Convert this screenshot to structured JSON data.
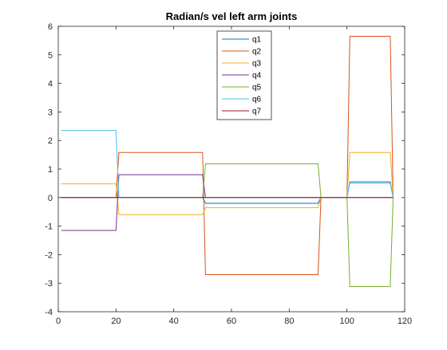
{
  "chart_data": {
    "type": "line",
    "title": "Radian/s vel left arm joints",
    "xlabel": "",
    "ylabel": "",
    "xlim": [
      0,
      120
    ],
    "ylim": [
      -4,
      6
    ],
    "xticks": [
      0,
      20,
      40,
      60,
      80,
      100,
      120
    ],
    "yticks": [
      -4,
      -3,
      -2,
      -1,
      0,
      1,
      2,
      3,
      4,
      5,
      6
    ],
    "grid": false,
    "legend_position": "top-center",
    "series": [
      {
        "name": "q1",
        "color": "#0072BD",
        "x": [
          1,
          20,
          21,
          50,
          51,
          90,
          91,
          100,
          101,
          115,
          116
        ],
        "y": [
          0,
          0,
          0,
          0,
          -0.2,
          -0.2,
          0,
          0,
          0.55,
          0.55,
          0
        ]
      },
      {
        "name": "q2",
        "color": "#D95319",
        "x": [
          1,
          20,
          21,
          50,
          51,
          90,
          91,
          100,
          101,
          115,
          116
        ],
        "y": [
          0,
          0,
          1.58,
          1.58,
          -2.7,
          -2.7,
          0,
          0,
          5.65,
          5.65,
          0
        ]
      },
      {
        "name": "q3",
        "color": "#EDB120",
        "x": [
          1,
          20,
          21,
          50,
          51,
          90,
          91,
          100,
          101,
          115,
          116
        ],
        "y": [
          0.48,
          0.48,
          -0.6,
          -0.6,
          -0.35,
          -0.35,
          0,
          0,
          1.58,
          1.58,
          0
        ]
      },
      {
        "name": "q4",
        "color": "#7E2F8E",
        "x": [
          1,
          20,
          21,
          50,
          51,
          90,
          91,
          100,
          101,
          115,
          116
        ],
        "y": [
          -1.15,
          -1.15,
          0.8,
          0.8,
          0,
          0,
          0,
          0,
          0,
          0,
          0
        ]
      },
      {
        "name": "q5",
        "color": "#77AC30",
        "x": [
          1,
          20,
          21,
          50,
          51,
          90,
          91,
          100,
          101,
          115,
          116
        ],
        "y": [
          0,
          0,
          0,
          0,
          1.18,
          1.18,
          0,
          0,
          -3.12,
          -3.12,
          0
        ]
      },
      {
        "name": "q6",
        "color": "#4DBEEE",
        "x": [
          1,
          20,
          21,
          50,
          51,
          90,
          91,
          100,
          101,
          115,
          116
        ],
        "y": [
          2.35,
          2.35,
          0,
          0,
          0,
          0,
          0,
          0,
          0.5,
          0.5,
          0
        ]
      },
      {
        "name": "q7",
        "color": "#A2142F",
        "x": [
          1,
          20,
          21,
          50,
          51,
          90,
          91,
          100,
          101,
          115,
          116
        ],
        "y": [
          0,
          0,
          0,
          0,
          0,
          0,
          0,
          0,
          0,
          0,
          0
        ]
      }
    ]
  }
}
